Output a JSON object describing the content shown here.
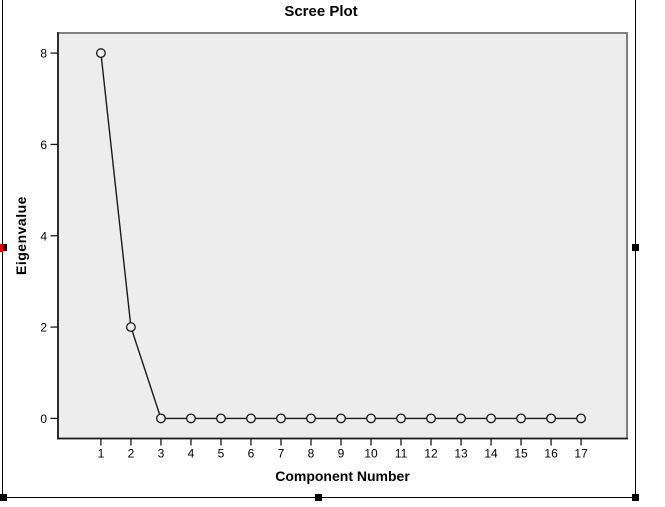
{
  "chart_data": {
    "type": "line",
    "title": "Scree Plot",
    "xlabel": "Component Number",
    "ylabel": "Eigenvalue",
    "x": [
      1,
      2,
      3,
      4,
      5,
      6,
      7,
      8,
      9,
      10,
      11,
      12,
      13,
      14,
      15,
      16,
      17
    ],
    "values": [
      8.0,
      2.0,
      0.0,
      0.0,
      0.0,
      0.0,
      0.0,
      0.0,
      0.0,
      0.0,
      0.0,
      0.0,
      0.0,
      0.0,
      0.0,
      0.0,
      0.0
    ],
    "x_tick_labels": [
      "1",
      "2",
      "3",
      "4",
      "5",
      "6",
      "7",
      "8",
      "9",
      "10",
      "11",
      "12",
      "13",
      "14",
      "15",
      "16",
      "17"
    ],
    "y_ticks": [
      0,
      2,
      4,
      6,
      8
    ],
    "y_tick_labels": [
      "0",
      "2",
      "4",
      "6",
      "8"
    ],
    "xlim": [
      -0.43,
      18.53
    ],
    "ylim": [
      -0.44,
      8.44
    ],
    "grid": false,
    "legend_position": "none",
    "marker": "open-circle",
    "colors": {
      "plot_background": "#ededed",
      "frame": "#808080",
      "axis": "#1a1a1a",
      "line": "#1a1a1a",
      "marker_stroke": "#1a1a1a",
      "text": "#000000"
    }
  },
  "selection": {
    "state": "selected-object",
    "handle_color": "#000000",
    "border_color": "#000000",
    "anchor_color": "#e00000"
  }
}
